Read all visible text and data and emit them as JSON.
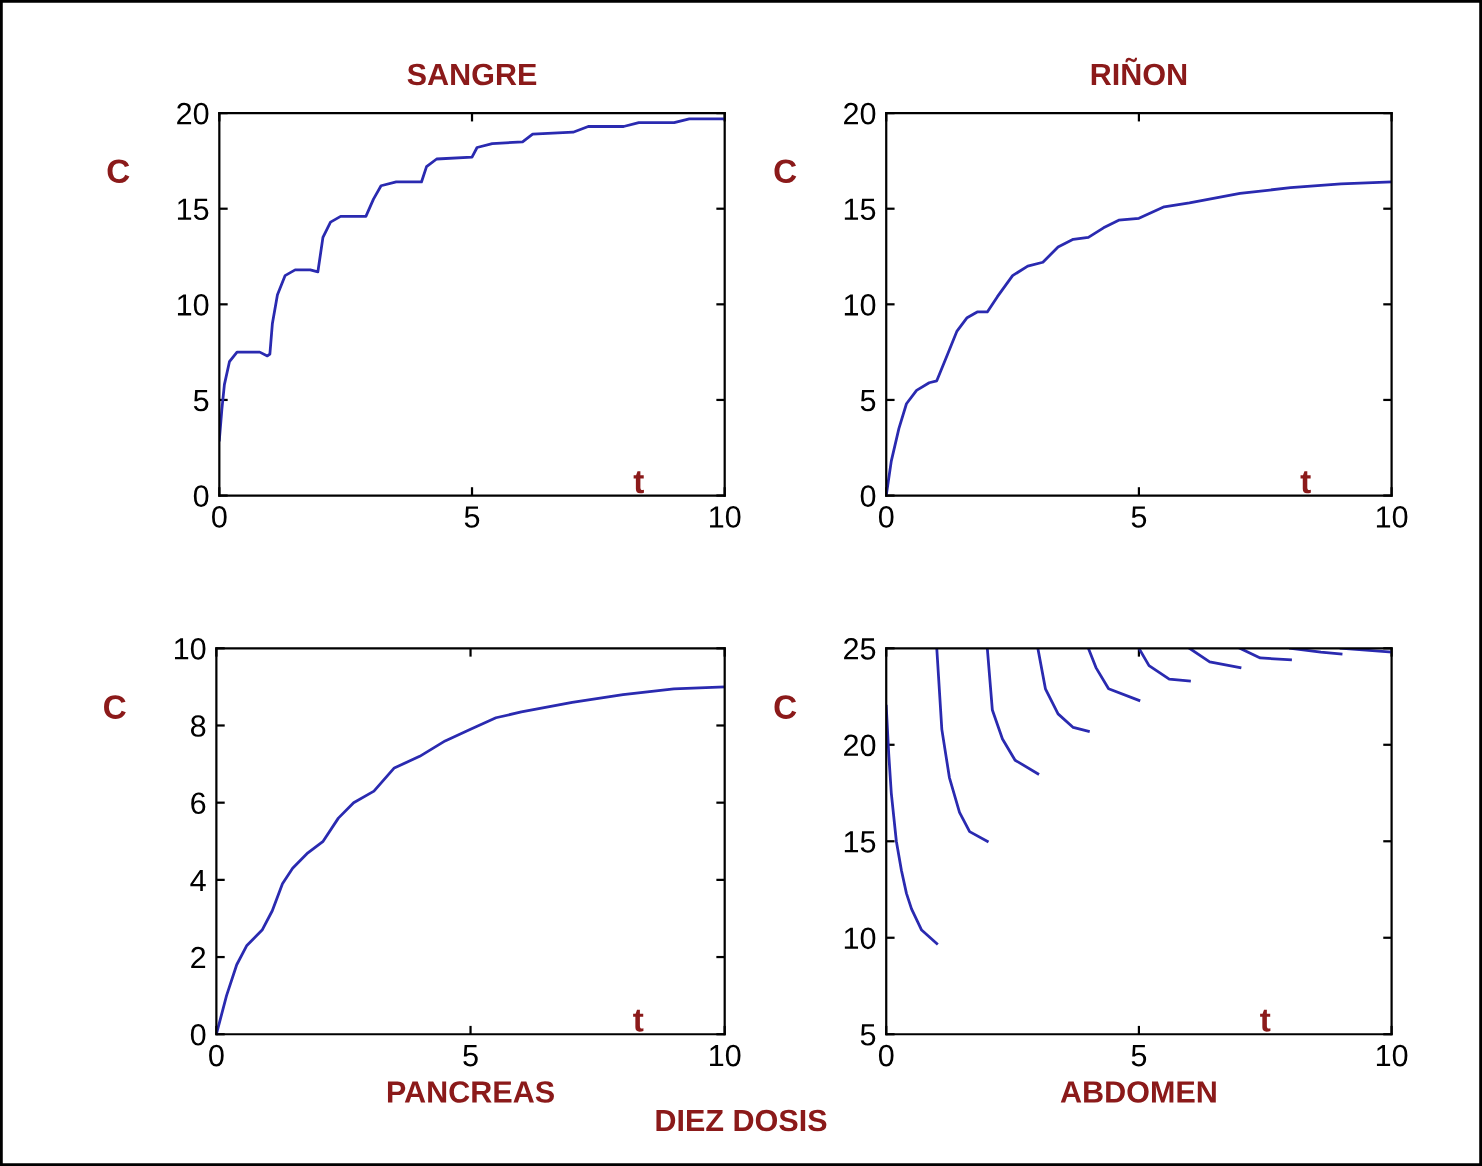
{
  "chart_data": [
    {
      "type": "line",
      "title": "SANGRE",
      "xlabel": "t",
      "ylabel": "C",
      "xlim": [
        0,
        10
      ],
      "ylim": [
        0,
        20
      ],
      "xticks": [
        0,
        5,
        10
      ],
      "yticks": [
        0,
        5,
        10,
        15,
        20
      ],
      "grid": false,
      "legend": false,
      "series": [
        {
          "color": "#2a2ab0",
          "x": [
            0,
            0.05,
            0.1,
            0.2,
            0.35,
            0.8,
            0.95,
            1.0,
            1.05,
            1.15,
            1.3,
            1.5,
            1.8,
            1.95,
            2.05,
            2.2,
            2.4,
            2.9,
            3.05,
            3.2,
            3.5,
            4.0,
            4.1,
            4.3,
            5.0,
            5.1,
            5.4,
            6.0,
            6.2,
            7.0,
            7.3,
            8.0,
            8.3,
            9.0,
            9.3,
            10
          ],
          "values": [
            2.9,
            4.5,
            5.8,
            7.0,
            7.5,
            7.5,
            7.3,
            7.4,
            9,
            10.5,
            11.5,
            11.8,
            11.8,
            11.7,
            13.5,
            14.3,
            14.6,
            14.6,
            15.5,
            16.2,
            16.4,
            16.4,
            17.2,
            17.6,
            17.7,
            18.2,
            18.4,
            18.5,
            18.9,
            19.0,
            19.3,
            19.3,
            19.5,
            19.5,
            19.7,
            19.7
          ]
        }
      ]
    },
    {
      "type": "line",
      "title": "RIÑON",
      "xlabel": "t",
      "ylabel": "C",
      "xlim": [
        0,
        10
      ],
      "ylim": [
        0,
        20
      ],
      "xticks": [
        0,
        5,
        10
      ],
      "yticks": [
        0,
        5,
        10,
        15,
        20
      ],
      "grid": false,
      "legend": false,
      "series": [
        {
          "color": "#2a2ab0",
          "x": [
            0,
            0.1,
            0.25,
            0.4,
            0.6,
            0.85,
            1.0,
            1.2,
            1.4,
            1.6,
            1.8,
            2.0,
            2.2,
            2.5,
            2.8,
            3.1,
            3.4,
            3.7,
            4.0,
            4.3,
            4.6,
            5.0,
            5.5,
            6.0,
            7.0,
            8.0,
            9.0,
            10
          ],
          "values": [
            0,
            1.8,
            3.5,
            4.8,
            5.5,
            5.9,
            6.0,
            7.3,
            8.6,
            9.3,
            9.6,
            9.6,
            10.4,
            11.5,
            12.0,
            12.2,
            13.0,
            13.4,
            13.5,
            14.0,
            14.4,
            14.5,
            15.1,
            15.3,
            15.8,
            16.1,
            16.3,
            16.4
          ]
        }
      ]
    },
    {
      "type": "line",
      "title": "PANCREAS",
      "xlabel": "t",
      "ylabel": "C",
      "xlim": [
        0,
        10
      ],
      "ylim": [
        0,
        10
      ],
      "xticks": [
        0,
        5,
        10
      ],
      "yticks": [
        0,
        2,
        4,
        6,
        8,
        10
      ],
      "grid": false,
      "legend": false,
      "annotations": [
        "DIEZ DOSIS"
      ],
      "series": [
        {
          "color": "#2a2ab0",
          "x": [
            0,
            0.2,
            0.4,
            0.6,
            0.9,
            1.1,
            1.3,
            1.5,
            1.8,
            2.1,
            2.4,
            2.7,
            3.1,
            3.5,
            4.0,
            4.5,
            5.0,
            5.5,
            6.0,
            7.0,
            8.0,
            9.0,
            10
          ],
          "values": [
            0,
            1.0,
            1.8,
            2.3,
            2.7,
            3.2,
            3.9,
            4.3,
            4.7,
            5.0,
            5.6,
            6.0,
            6.3,
            6.9,
            7.2,
            7.6,
            7.9,
            8.2,
            8.35,
            8.6,
            8.8,
            8.95,
            9.0
          ]
        }
      ]
    },
    {
      "type": "line",
      "title": "ABDOMEN",
      "xlabel": "t",
      "ylabel": "C",
      "xlim": [
        0,
        10
      ],
      "ylim": [
        5,
        25
      ],
      "xticks": [
        0,
        5,
        10
      ],
      "yticks": [
        5,
        10,
        15,
        20,
        25
      ],
      "grid": false,
      "legend": false,
      "series": [
        {
          "color": "#2a2ab0",
          "x": [
            0,
            0.05,
            0.1,
            0.2,
            0.3,
            0.4,
            0.5,
            0.7,
            1.0
          ],
          "values": [
            22,
            19.5,
            17.5,
            15,
            13.5,
            12.3,
            11.5,
            10.4,
            9.7
          ]
        },
        {
          "color": "#2a2ab0",
          "x": [
            1.0,
            1.1,
            1.25,
            1.45,
            1.65,
            2.0
          ],
          "values": [
            25,
            20.8,
            18.3,
            16.5,
            15.5,
            15.0
          ]
        },
        {
          "color": "#2a2ab0",
          "x": [
            2.0,
            2.1,
            2.3,
            2.55,
            3.0
          ],
          "values": [
            25,
            21.8,
            20.3,
            19.2,
            18.5
          ]
        },
        {
          "color": "#2a2ab0",
          "x": [
            3.0,
            3.15,
            3.4,
            3.7,
            4.0
          ],
          "values": [
            25,
            22.9,
            21.6,
            20.9,
            20.7
          ]
        },
        {
          "color": "#2a2ab0",
          "x": [
            4.0,
            4.15,
            4.4,
            5.0
          ],
          "values": [
            25,
            24.0,
            22.9,
            22.3
          ]
        },
        {
          "color": "#2a2ab0",
          "x": [
            5.0,
            5.2,
            5.6,
            6.0
          ],
          "values": [
            25,
            24.1,
            23.4,
            23.3
          ]
        },
        {
          "color": "#2a2ab0",
          "x": [
            6.0,
            6.4,
            7.0
          ],
          "values": [
            25,
            24.3,
            24.0
          ]
        },
        {
          "color": "#2a2ab0",
          "x": [
            7.0,
            7.4,
            8.0
          ],
          "values": [
            25,
            24.5,
            24.4
          ]
        },
        {
          "color": "#2a2ab0",
          "x": [
            8.0,
            8.6,
            9.0
          ],
          "values": [
            25,
            24.8,
            24.7
          ]
        },
        {
          "color": "#2a2ab0",
          "x": [
            9.0,
            10
          ],
          "values": [
            25,
            24.8
          ]
        }
      ]
    }
  ]
}
